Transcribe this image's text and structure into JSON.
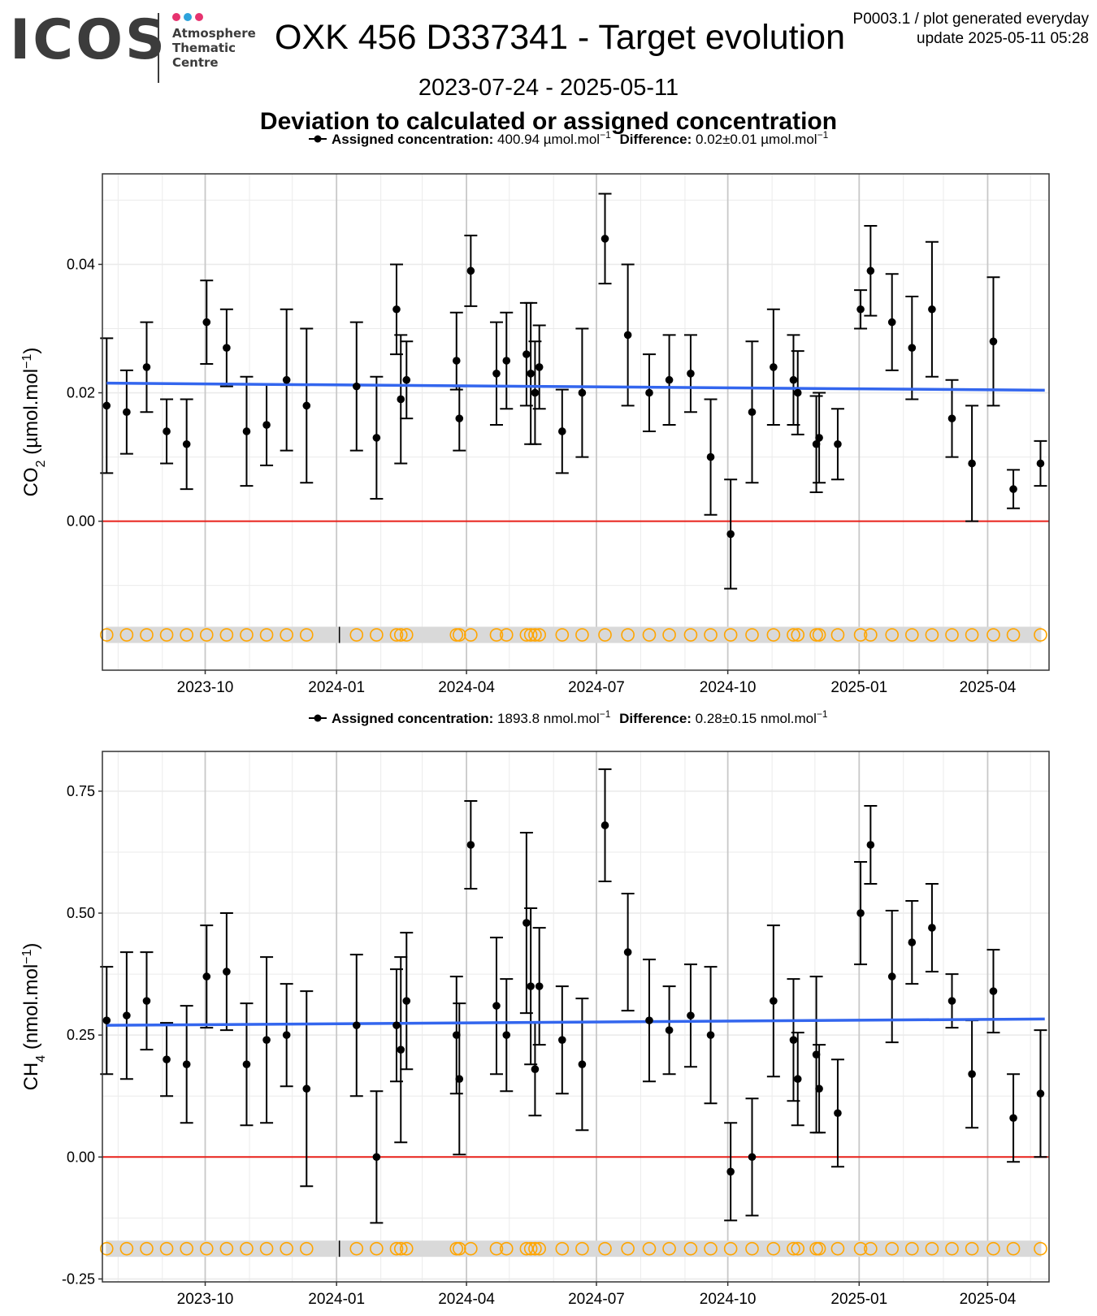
{
  "header": {
    "logo": "ICOS",
    "logo_subtitle": [
      "Atmosphere",
      "Thematic",
      "Centre"
    ],
    "logo_dot_colors": [
      "#e6336f",
      "#2ea3dc",
      "#e6336f"
    ],
    "title": "OXK 456 D337341 - Target evolution",
    "corner_line1": "P0003.1 / plot generated everyday",
    "corner_line2": "update  2025-05-11 05:28",
    "date_range": "2023-07-24 - 2025-05-11",
    "subtitle": "Deviation to calculated or assigned concentration"
  },
  "colors": {
    "points": "#000000",
    "trend": "#3366ee",
    "zero_line": "#e8201a",
    "marker_circles": "#ffa500",
    "marker_band": "#d9d9d9",
    "grid": "#ebebeb"
  },
  "chart_data": [
    {
      "type": "scatter",
      "legend": {
        "label1": "Assigned concentration:",
        "value1": "400.94 µmol.mol",
        "sup1": "−1",
        "label2": "Difference:",
        "value2": "0.02±0.01 µmol.mol",
        "sup2": "−1"
      },
      "ylabel": "CO",
      "ylabel_sub": "2",
      "ylabel_unit": " (µmol.mol",
      "ylabel_sup": "−1",
      "ylabel_close": ")",
      "xlim": [
        "2023-07-21",
        "2025-05-14"
      ],
      "ylim": [
        -0.0232,
        0.0541
      ],
      "yticks": [
        0.0,
        0.02,
        0.04
      ],
      "ytick_labels": [
        "0.00",
        "0.02",
        "0.04"
      ],
      "xticks": [
        "2023-10-01",
        "2024-01-01",
        "2024-04-01",
        "2024-07-01",
        "2024-10-01",
        "2025-01-01",
        "2025-04-01"
      ],
      "xtick_labels": [
        "2023-10",
        "2024-01",
        "2024-04",
        "2024-07",
        "2024-10",
        "2025-01",
        "2025-04"
      ],
      "trend": {
        "x": [
          "2023-07-24",
          "2025-05-11"
        ],
        "y": [
          0.0215,
          0.0204
        ]
      },
      "reference_line": 0,
      "marker_row_y": -0.0177,
      "series": [
        {
          "points": [
            [
              "2023-07-24",
              0.018,
              0.0075,
              0.0285
            ],
            [
              "2023-08-07",
              0.017,
              0.0105,
              0.0235
            ],
            [
              "2023-08-21",
              0.024,
              0.017,
              0.031
            ],
            [
              "2023-09-04",
              0.014,
              0.009,
              0.019
            ],
            [
              "2023-09-18",
              0.012,
              0.005,
              0.019
            ],
            [
              "2023-10-02",
              0.031,
              0.0245,
              0.0375
            ],
            [
              "2023-10-16",
              0.027,
              0.021,
              0.033
            ],
            [
              "2023-10-30",
              0.014,
              0.0055,
              0.0225
            ],
            [
              "2023-11-13",
              0.015,
              0.0087,
              0.0213
            ],
            [
              "2023-11-27",
              0.022,
              0.011,
              0.033
            ],
            [
              "2023-12-11",
              0.018,
              0.006,
              0.03
            ],
            [
              "2024-01-15",
              0.021,
              0.011,
              0.031
            ],
            [
              "2024-01-29",
              0.013,
              0.0035,
              0.0225
            ],
            [
              "2024-02-12",
              0.033,
              0.026,
              0.04
            ],
            [
              "2024-02-15",
              0.019,
              0.009,
              0.029
            ],
            [
              "2024-02-19",
              0.022,
              0.016,
              0.028
            ],
            [
              "2024-03-25",
              0.025,
              0.0205,
              0.0325
            ],
            [
              "2024-03-27",
              0.016,
              0.011,
              0.021
            ],
            [
              "2024-04-04",
              0.039,
              0.0335,
              0.0445
            ],
            [
              "2024-04-22",
              0.023,
              0.015,
              0.031
            ],
            [
              "2024-04-29",
              0.025,
              0.0175,
              0.0325
            ],
            [
              "2024-05-13",
              0.026,
              0.018,
              0.034
            ],
            [
              "2024-05-16",
              0.023,
              0.012,
              0.034
            ],
            [
              "2024-05-19",
              0.02,
              0.012,
              0.028
            ],
            [
              "2024-05-22",
              0.024,
              0.0175,
              0.0305
            ],
            [
              "2024-06-07",
              0.014,
              0.0075,
              0.0205
            ],
            [
              "2024-06-21",
              0.02,
              0.01,
              0.03
            ],
            [
              "2024-07-07",
              0.044,
              0.037,
              0.051
            ],
            [
              "2024-07-23",
              0.029,
              0.018,
              0.04
            ],
            [
              "2024-08-07",
              0.02,
              0.014,
              0.026
            ],
            [
              "2024-08-21",
              0.022,
              0.015,
              0.029
            ],
            [
              "2024-09-05",
              0.023,
              0.017,
              0.029
            ],
            [
              "2024-09-19",
              0.01,
              0.001,
              0.019
            ],
            [
              "2024-10-03",
              -0.002,
              -0.0105,
              0.0065
            ],
            [
              "2024-10-18",
              0.017,
              0.006,
              0.028
            ],
            [
              "2024-11-02",
              0.024,
              0.015,
              0.033
            ],
            [
              "2024-11-16",
              0.022,
              0.015,
              0.029
            ],
            [
              "2024-11-19",
              0.02,
              0.0135,
              0.0265
            ],
            [
              "2024-12-02",
              0.012,
              0.0045,
              0.0195
            ],
            [
              "2024-12-04",
              0.013,
              0.006,
              0.02
            ],
            [
              "2024-12-17",
              0.012,
              0.0065,
              0.0175
            ],
            [
              "2025-01-02",
              0.033,
              0.03,
              0.036
            ],
            [
              "2025-01-09",
              0.039,
              0.032,
              0.046
            ],
            [
              "2025-01-24",
              0.031,
              0.0235,
              0.0385
            ],
            [
              "2025-02-07",
              0.027,
              0.019,
              0.035
            ],
            [
              "2025-02-21",
              0.033,
              0.0225,
              0.0435
            ],
            [
              "2025-03-07",
              0.016,
              0.01,
              0.022
            ],
            [
              "2025-03-21",
              0.009,
              0.0,
              0.018
            ],
            [
              "2025-04-05",
              0.028,
              0.018,
              0.038
            ],
            [
              "2025-04-19",
              0.005,
              0.002,
              0.008
            ],
            [
              "2025-05-08",
              0.009,
              0.0055,
              0.0125
            ]
          ]
        }
      ]
    },
    {
      "type": "scatter",
      "legend": {
        "label1": "Assigned concentration:",
        "value1": "1893.8 nmol.mol",
        "sup1": "−1",
        "label2": "Difference:",
        "value2": "0.28±0.15 nmol.mol",
        "sup2": "−1"
      },
      "ylabel": "CH",
      "ylabel_sub": "4",
      "ylabel_unit": " (nmol.mol",
      "ylabel_sup": "−1",
      "ylabel_close": ")",
      "xlim": [
        "2023-07-21",
        "2025-05-14"
      ],
      "ylim": [
        -0.256,
        0.8315
      ],
      "yticks": [
        -0.25,
        0.0,
        0.25,
        0.5,
        0.75
      ],
      "ytick_labels": [
        "-0.25",
        "0.00",
        "0.25",
        "0.50",
        "0.75"
      ],
      "xticks": [
        "2023-10-01",
        "2024-01-01",
        "2024-04-01",
        "2024-07-01",
        "2024-10-01",
        "2025-01-01",
        "2025-04-01"
      ],
      "xtick_labels": [
        "2023-10",
        "2024-01",
        "2024-04",
        "2024-07",
        "2024-10",
        "2025-01",
        "2025-04"
      ],
      "trend": {
        "x": [
          "2023-07-24",
          "2025-05-11"
        ],
        "y": [
          0.27,
          0.283
        ]
      },
      "reference_line": 0,
      "marker_row_y": -0.188,
      "series": [
        {
          "points": [
            [
              "2023-07-24",
              0.28,
              0.17,
              0.39
            ],
            [
              "2023-08-07",
              0.29,
              0.16,
              0.42
            ],
            [
              "2023-08-21",
              0.32,
              0.22,
              0.42
            ],
            [
              "2023-09-04",
              0.2,
              0.125,
              0.275
            ],
            [
              "2023-09-18",
              0.19,
              0.07,
              0.31
            ],
            [
              "2023-10-02",
              0.37,
              0.265,
              0.475
            ],
            [
              "2023-10-16",
              0.38,
              0.26,
              0.5
            ],
            [
              "2023-10-30",
              0.19,
              0.065,
              0.315
            ],
            [
              "2023-11-13",
              0.24,
              0.07,
              0.41
            ],
            [
              "2023-11-27",
              0.25,
              0.145,
              0.355
            ],
            [
              "2023-12-11",
              0.14,
              -0.06,
              0.34
            ],
            [
              "2024-01-15",
              0.27,
              0.125,
              0.415
            ],
            [
              "2024-01-29",
              0.0,
              -0.135,
              0.135
            ],
            [
              "2024-02-12",
              0.27,
              0.155,
              0.385
            ],
            [
              "2024-02-15",
              0.22,
              0.03,
              0.41
            ],
            [
              "2024-02-19",
              0.32,
              0.18,
              0.46
            ],
            [
              "2024-03-25",
              0.25,
              0.13,
              0.37
            ],
            [
              "2024-03-27",
              0.16,
              0.005,
              0.315
            ],
            [
              "2024-04-04",
              0.64,
              0.55,
              0.73
            ],
            [
              "2024-04-22",
              0.31,
              0.17,
              0.45
            ],
            [
              "2024-04-29",
              0.25,
              0.135,
              0.365
            ],
            [
              "2024-05-13",
              0.48,
              0.295,
              0.665
            ],
            [
              "2024-05-16",
              0.35,
              0.19,
              0.51
            ],
            [
              "2024-05-19",
              0.18,
              0.085,
              0.275
            ],
            [
              "2024-05-22",
              0.35,
              0.23,
              0.47
            ],
            [
              "2024-06-07",
              0.24,
              0.13,
              0.35
            ],
            [
              "2024-06-21",
              0.19,
              0.055,
              0.325
            ],
            [
              "2024-07-07",
              0.68,
              0.565,
              0.795
            ],
            [
              "2024-07-23",
              0.42,
              0.3,
              0.54
            ],
            [
              "2024-08-07",
              0.28,
              0.155,
              0.405
            ],
            [
              "2024-08-21",
              0.26,
              0.17,
              0.35
            ],
            [
              "2024-09-05",
              0.29,
              0.185,
              0.395
            ],
            [
              "2024-09-19",
              0.25,
              0.11,
              0.39
            ],
            [
              "2024-10-03",
              -0.03,
              -0.13,
              0.07
            ],
            [
              "2024-10-18",
              0.0,
              -0.12,
              0.12
            ],
            [
              "2024-11-02",
              0.32,
              0.165,
              0.475
            ],
            [
              "2024-11-16",
              0.24,
              0.115,
              0.365
            ],
            [
              "2024-11-19",
              0.16,
              0.065,
              0.255
            ],
            [
              "2024-12-02",
              0.21,
              0.05,
              0.37
            ],
            [
              "2024-12-04",
              0.14,
              0.05,
              0.23
            ],
            [
              "2024-12-17",
              0.09,
              -0.02,
              0.2
            ],
            [
              "2025-01-02",
              0.5,
              0.395,
              0.605
            ],
            [
              "2025-01-09",
              0.64,
              0.56,
              0.72
            ],
            [
              "2025-01-24",
              0.37,
              0.235,
              0.505
            ],
            [
              "2025-02-07",
              0.44,
              0.355,
              0.525
            ],
            [
              "2025-02-21",
              0.47,
              0.38,
              0.56
            ],
            [
              "2025-03-07",
              0.32,
              0.265,
              0.375
            ],
            [
              "2025-03-21",
              0.17,
              0.06,
              0.28
            ],
            [
              "2025-04-05",
              0.34,
              0.255,
              0.425
            ],
            [
              "2025-04-19",
              0.08,
              -0.01,
              0.17
            ],
            [
              "2025-05-08",
              0.13,
              0.0,
              0.26
            ]
          ]
        }
      ]
    }
  ]
}
